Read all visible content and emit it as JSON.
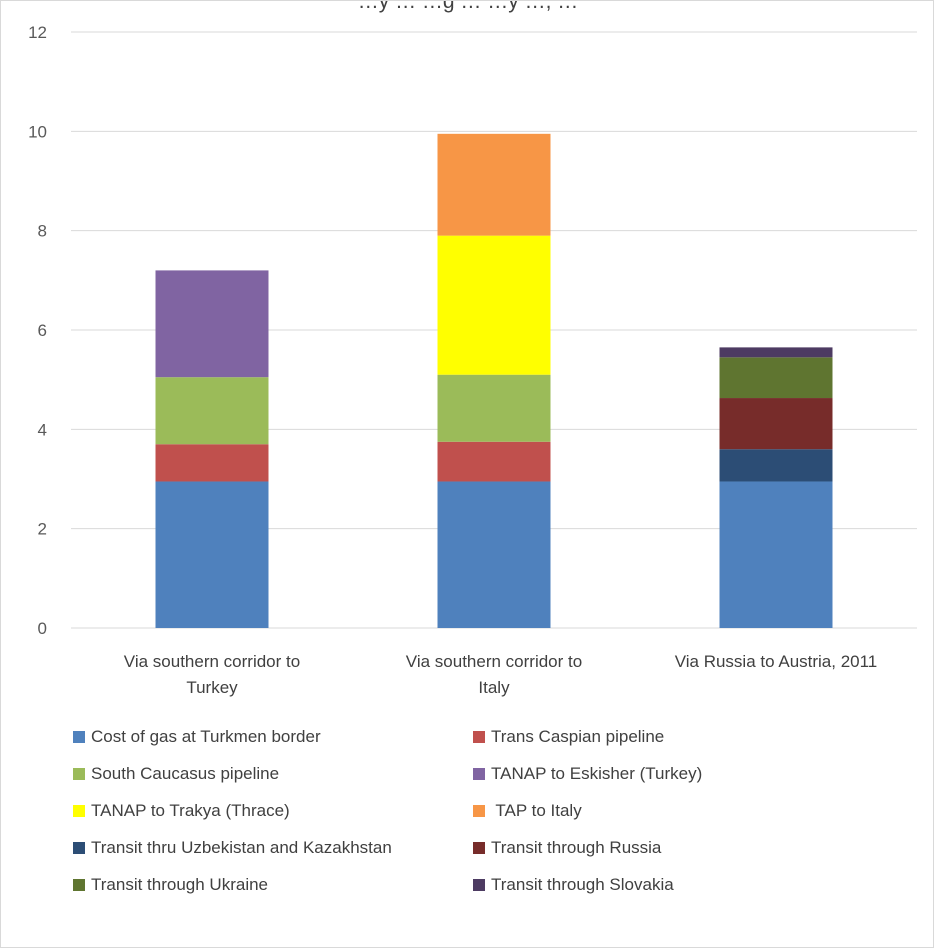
{
  "chart_data": {
    "type": "bar",
    "stacked": true,
    "title": "…y … …g … …y …, …",
    "categories": [
      "Via southern corridor to Turkey",
      "Via southern corridor to Italy",
      "Via Russia to Austria, 2011"
    ],
    "category_label_lines": [
      [
        "Via southern corridor to",
        "Turkey"
      ],
      [
        "Via southern corridor to",
        "Italy"
      ],
      [
        "Via Russia to Austria, 2011"
      ]
    ],
    "ylim": [
      0,
      12
    ],
    "yticks": [
      0,
      2,
      4,
      6,
      8,
      10,
      12
    ],
    "grid": true,
    "legend_position": "bottom",
    "series": [
      {
        "name": "Cost of gas at Turkmen border",
        "color": "#4f81bd",
        "values": [
          2.95,
          2.95,
          2.95
        ]
      },
      {
        "name": "Trans Caspian pipeline",
        "color": "#c0504d",
        "values": [
          0.75,
          0.8,
          0
        ]
      },
      {
        "name": "South Caucasus pipeline",
        "color": "#9bbb59",
        "values": [
          1.35,
          1.35,
          0
        ]
      },
      {
        "name": "TANAP to Eskisher (Turkey)",
        "color": "#8064a2",
        "values": [
          2.15,
          0,
          0
        ]
      },
      {
        "name": "TANAP to Trakya (Thrace)",
        "color": "#ffff00",
        "values": [
          0,
          2.8,
          0
        ]
      },
      {
        "name": " TAP to Italy",
        "color": "#f79646",
        "values": [
          0,
          2.05,
          0
        ]
      },
      {
        "name": "Transit thru Uzbekistan and Kazakhstan",
        "color": "#2c4d75",
        "values": [
          0,
          0,
          0.65
        ]
      },
      {
        "name": "Transit through Russia",
        "color": "#772c2a",
        "values": [
          0,
          0,
          1.03
        ]
      },
      {
        "name": "Transit through Ukraine",
        "color": "#5f7530",
        "values": [
          0,
          0,
          0.82
        ]
      },
      {
        "name": "Transit through Slovakia",
        "color": "#4d3b62",
        "values": [
          0,
          0,
          0.2
        ]
      }
    ]
  }
}
